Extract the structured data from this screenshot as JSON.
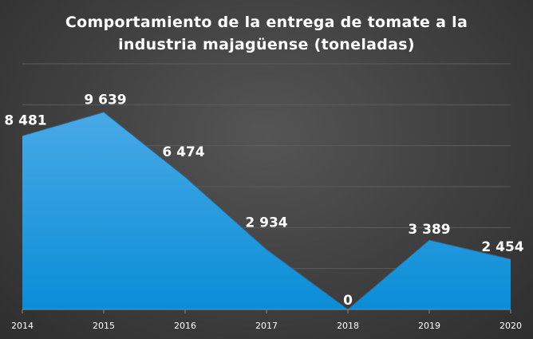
{
  "chart_data": {
    "type": "area",
    "title": "Comportamiento de la entrega de tomate a la\nindustria majagüense (toneladas)",
    "categories": [
      "2014",
      "2015",
      "2016",
      "2017",
      "2018",
      "2019",
      "2020"
    ],
    "values": [
      8481,
      9639,
      6474,
      2934,
      0,
      3389,
      2454
    ],
    "data_labels": [
      "8 481",
      "9 639",
      "6 474",
      "2 934",
      "0",
      "3 389",
      "2 454"
    ],
    "xlabel": "",
    "ylabel": "",
    "ylim": [
      0,
      12000
    ],
    "grid": true,
    "legend": "none",
    "colors": {
      "fill_top": "#49a9e6",
      "fill_bottom": "#0a8ed6",
      "gridline": "#5c5c5c",
      "axis": "#8a8a8a"
    }
  }
}
